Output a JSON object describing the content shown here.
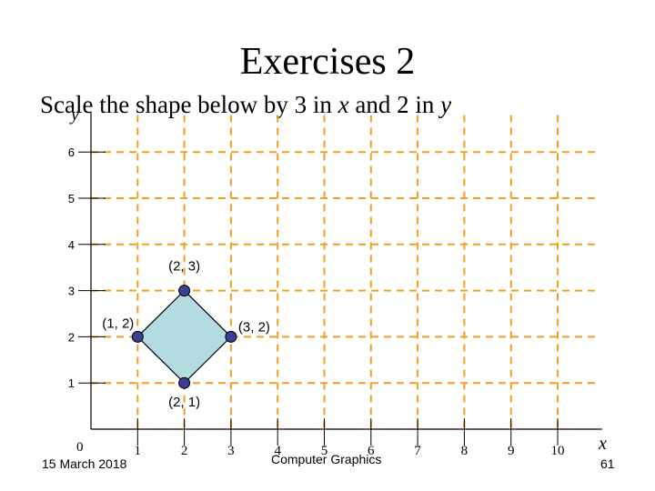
{
  "title": "Exercises 2",
  "subtitle": {
    "pre": "Scale the shape below by 3 in ",
    "x_var": "x",
    "mid": " and 2 in ",
    "y_var": "y"
  },
  "axes": {
    "x_label": "x",
    "y_label": "y",
    "origin_label": "0",
    "x_ticks": [
      "1",
      "2",
      "3",
      "4",
      "5",
      "6",
      "7",
      "8",
      "9",
      "10"
    ],
    "y_ticks": [
      "1",
      "2",
      "3",
      "4",
      "5",
      "6"
    ],
    "xlim": [
      0,
      11
    ],
    "ylim": [
      0,
      7
    ]
  },
  "shape": {
    "fill": "#b4dce0",
    "vertices": [
      {
        "label": "(2, 3)",
        "x": 2,
        "y": 3
      },
      {
        "label": "(3, 2)",
        "x": 3,
        "y": 2
      },
      {
        "label": "(2, 1)",
        "x": 2,
        "y": 1
      },
      {
        "label": "(1, 2)",
        "x": 1,
        "y": 2
      }
    ]
  },
  "colors": {
    "grid": "#f0a01e",
    "point": "#3a3f93"
  },
  "footer": {
    "date": "15 March 2018",
    "course": "Computer Graphics",
    "page": "61"
  }
}
